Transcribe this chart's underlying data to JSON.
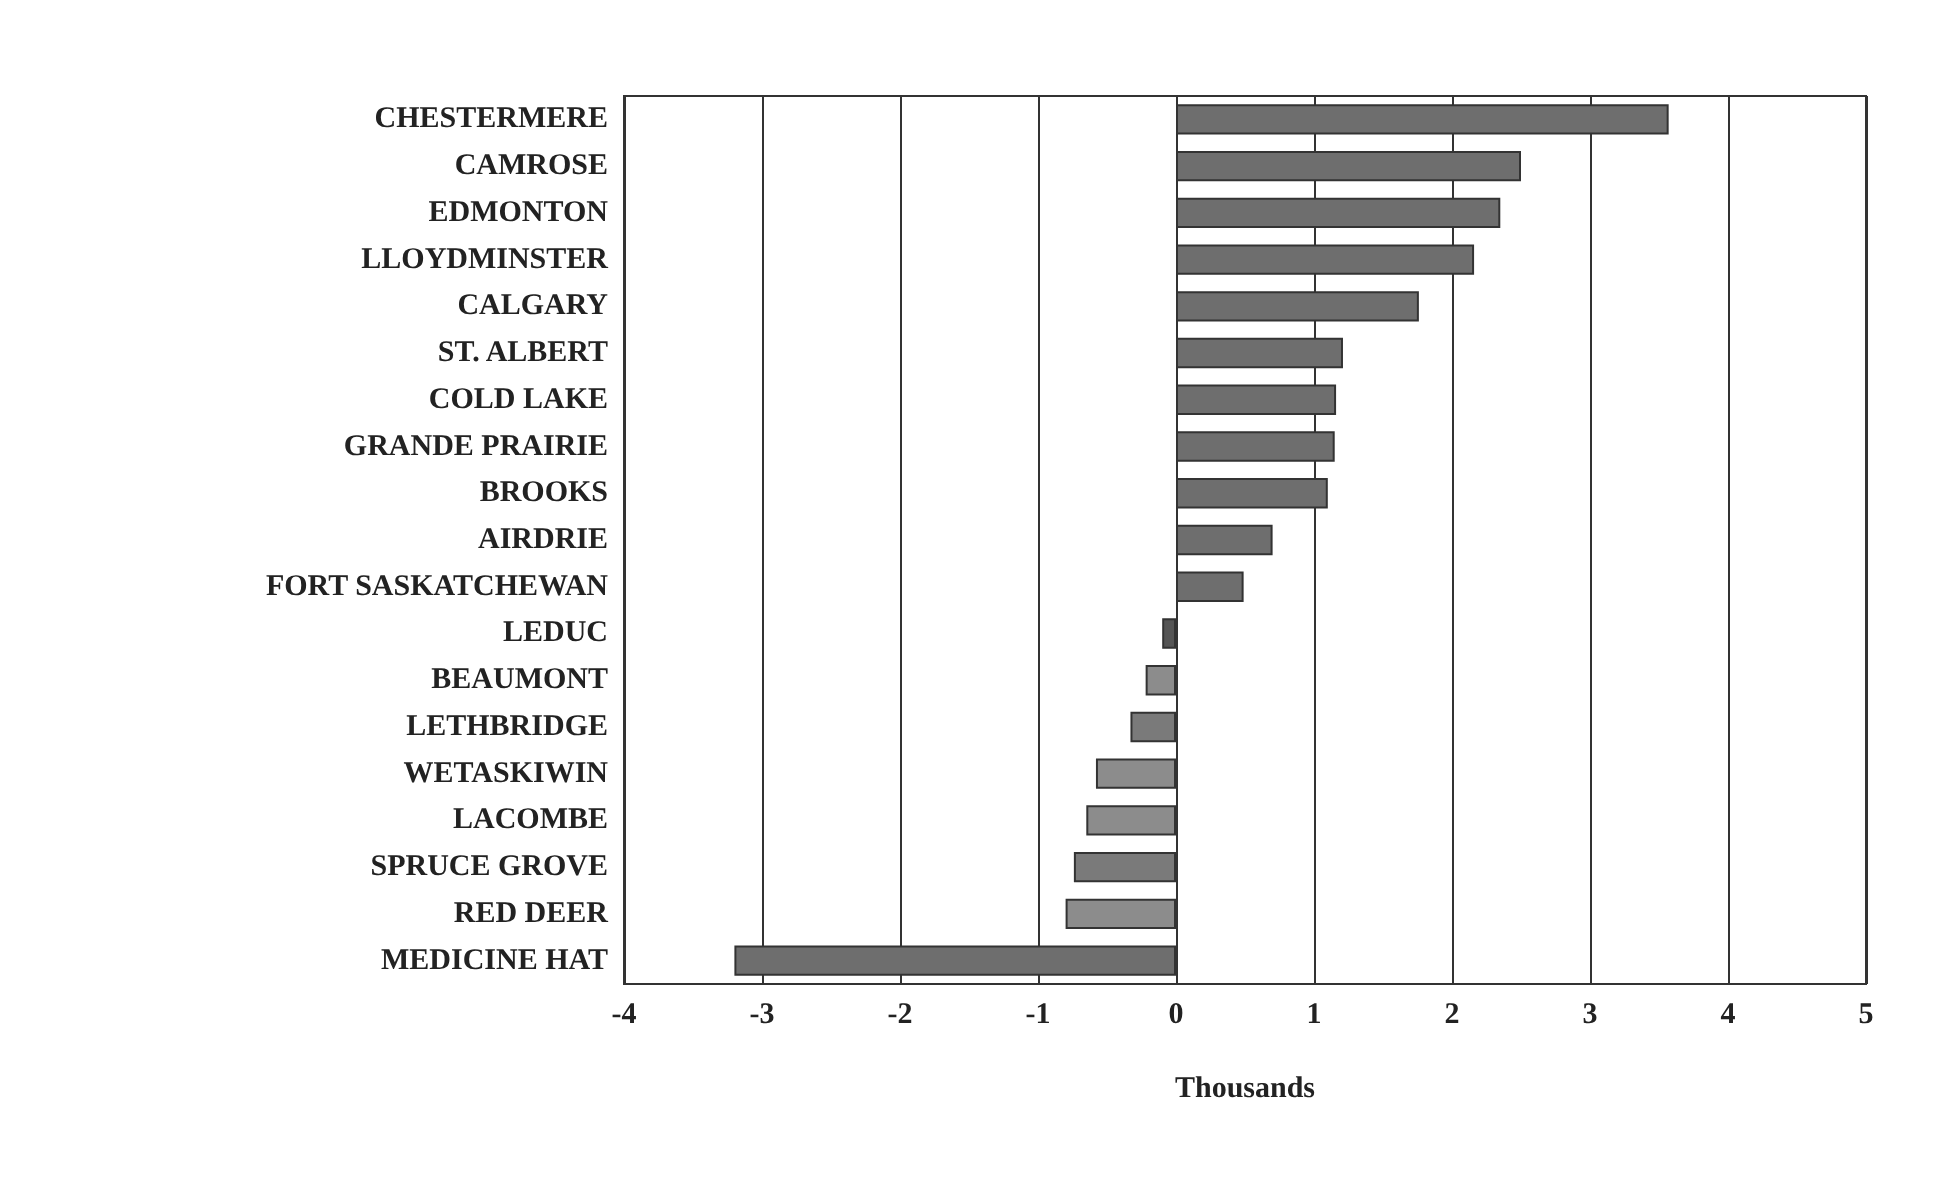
{
  "chart_data": {
    "type": "bar",
    "orientation": "horizontal",
    "xlabel": "Thousands",
    "categories": [
      "CHESTERMERE",
      "CAMROSE",
      "EDMONTON",
      "LLOYDMINSTER",
      "CALGARY",
      "ST. ALBERT",
      "COLD LAKE",
      "GRANDE PRAIRIE",
      "BROOKS",
      "AIRDRIE",
      "FORT SASKATCHEWAN",
      "LEDUC",
      "BEAUMONT",
      "LETHBRIDGE",
      "WETASKIWIN",
      "LACOMBE",
      "SPRUCE GROVE",
      "RED DEER",
      "MEDICINE HAT"
    ],
    "values": [
      3.57,
      2.5,
      2.35,
      2.16,
      1.76,
      1.21,
      1.16,
      1.15,
      1.1,
      0.7,
      0.49,
      -0.1,
      -0.22,
      -0.33,
      -0.58,
      -0.65,
      -0.74,
      -0.8,
      -3.2
    ],
    "colors": [
      "#6e6e6e",
      "#6e6e6e",
      "#6e6e6e",
      "#6e6e6e",
      "#6e6e6e",
      "#6e6e6e",
      "#6e6e6e",
      "#6e6e6e",
      "#6e6e6e",
      "#6e6e6e",
      "#6e6e6e",
      "#555555",
      "#8c8c8c",
      "#7a7a7a",
      "#8c8c8c",
      "#8c8c8c",
      "#7a7a7a",
      "#8c8c8c",
      "#6e6e6e"
    ],
    "xlim": [
      -4,
      5
    ],
    "xticks": [
      -4,
      -3,
      -2,
      -1,
      0,
      1,
      2,
      3,
      4,
      5
    ],
    "grid": "x"
  }
}
